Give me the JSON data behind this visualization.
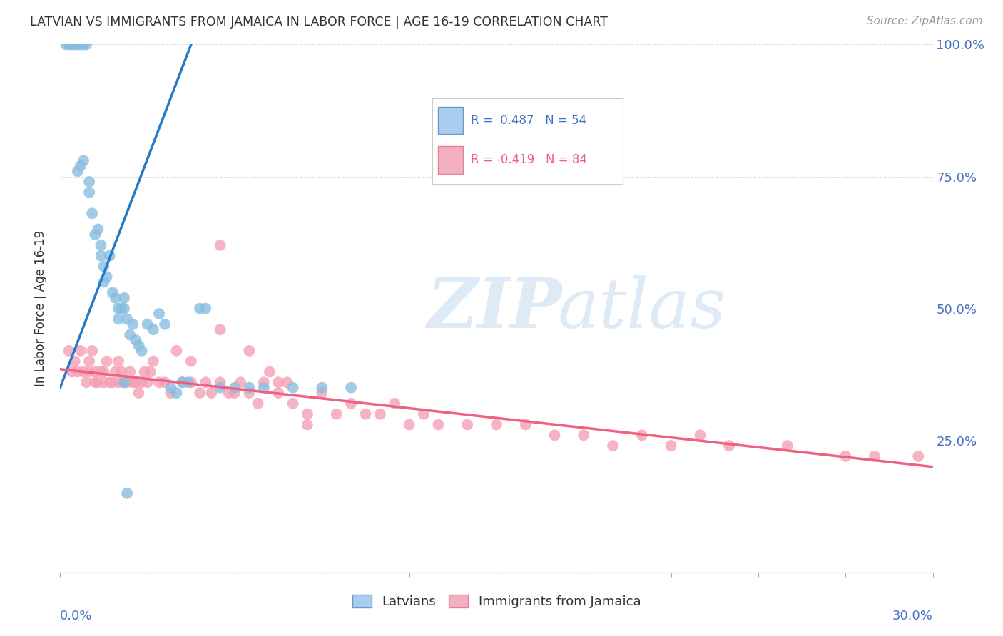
{
  "title": "LATVIAN VS IMMIGRANTS FROM JAMAICA IN LABOR FORCE | AGE 16-19 CORRELATION CHART",
  "source": "Source: ZipAtlas.com",
  "ylabel": "In Labor Force | Age 16-19",
  "xlim": [
    0.0,
    30.0
  ],
  "ylim": [
    0.0,
    100.0
  ],
  "ytick_labels_right": [
    "25.0%",
    "50.0%",
    "75.0%",
    "100.0%"
  ],
  "ytick_values_right": [
    25.0,
    50.0,
    75.0,
    100.0
  ],
  "background_color": "#ffffff",
  "grid_color": "#e0e0e0",
  "latvian_color": "#89bde0",
  "jamaica_color": "#f4a0b5",
  "latvian_line_color": "#2878c8",
  "jamaica_line_color": "#f06080",
  "R_latvian": 0.487,
  "N_latvian": 54,
  "R_jamaica": -0.419,
  "N_jamaica": 84,
  "lat_line_x0": 0.0,
  "lat_line_y0": 35.0,
  "lat_line_x1": 4.5,
  "lat_line_y1": 100.0,
  "jam_line_x0": 0.0,
  "jam_line_y0": 38.5,
  "jam_line_x1": 30.0,
  "jam_line_y1": 20.0,
  "latvian_pts_x": [
    0.2,
    0.3,
    0.4,
    0.5,
    0.6,
    0.7,
    0.8,
    0.9,
    1.0,
    1.0,
    1.1,
    1.2,
    1.3,
    1.4,
    1.4,
    1.5,
    1.5,
    1.6,
    1.7,
    1.8,
    1.9,
    2.0,
    2.0,
    2.1,
    2.2,
    2.2,
    2.3,
    2.4,
    2.5,
    2.6,
    2.7,
    2.8,
    3.0,
    3.2,
    3.4,
    3.6,
    3.8,
    4.0,
    4.2,
    4.4,
    4.8,
    5.0,
    5.5,
    6.0,
    6.5,
    7.0,
    8.0,
    9.0,
    10.0,
    0.6,
    0.7,
    0.8,
    2.2,
    2.3
  ],
  "latvian_pts_y": [
    100.0,
    100.0,
    100.0,
    100.0,
    100.0,
    100.0,
    100.0,
    100.0,
    74.0,
    72.0,
    68.0,
    64.0,
    65.0,
    60.0,
    62.0,
    58.0,
    55.0,
    56.0,
    60.0,
    53.0,
    52.0,
    50.0,
    48.0,
    50.0,
    52.0,
    50.0,
    48.0,
    45.0,
    47.0,
    44.0,
    43.0,
    42.0,
    47.0,
    46.0,
    49.0,
    47.0,
    35.0,
    34.0,
    36.0,
    36.0,
    50.0,
    50.0,
    35.0,
    35.0,
    35.0,
    35.0,
    35.0,
    35.0,
    35.0,
    76.0,
    77.0,
    78.0,
    36.0,
    15.0
  ],
  "jamaica_pts_x": [
    0.3,
    0.4,
    0.5,
    0.6,
    0.7,
    0.8,
    0.9,
    1.0,
    1.0,
    1.1,
    1.2,
    1.2,
    1.3,
    1.4,
    1.5,
    1.5,
    1.6,
    1.7,
    1.8,
    1.9,
    2.0,
    2.0,
    2.1,
    2.2,
    2.3,
    2.4,
    2.5,
    2.6,
    2.7,
    2.8,
    2.9,
    3.0,
    3.1,
    3.2,
    3.4,
    3.6,
    3.8,
    4.0,
    4.2,
    4.5,
    4.8,
    5.0,
    5.2,
    5.5,
    5.5,
    5.8,
    6.0,
    6.2,
    6.5,
    6.8,
    7.0,
    7.2,
    7.5,
    7.8,
    8.0,
    8.5,
    9.0,
    9.5,
    10.0,
    10.5,
    11.0,
    11.5,
    12.0,
    12.5,
    13.0,
    14.0,
    15.0,
    16.0,
    17.0,
    18.0,
    19.0,
    20.0,
    21.0,
    22.0,
    23.0,
    25.0,
    27.0,
    28.0,
    29.5,
    5.5,
    4.5,
    6.5,
    7.5,
    8.5
  ],
  "jamaica_pts_y": [
    42.0,
    38.0,
    40.0,
    38.0,
    42.0,
    38.0,
    36.0,
    40.0,
    38.0,
    42.0,
    36.0,
    38.0,
    36.0,
    38.0,
    38.0,
    36.0,
    40.0,
    36.0,
    36.0,
    38.0,
    36.0,
    40.0,
    38.0,
    36.0,
    36.0,
    38.0,
    36.0,
    36.0,
    34.0,
    36.0,
    38.0,
    36.0,
    38.0,
    40.0,
    36.0,
    36.0,
    34.0,
    42.0,
    36.0,
    36.0,
    34.0,
    36.0,
    34.0,
    46.0,
    36.0,
    34.0,
    34.0,
    36.0,
    34.0,
    32.0,
    36.0,
    38.0,
    34.0,
    36.0,
    32.0,
    30.0,
    34.0,
    30.0,
    32.0,
    30.0,
    30.0,
    32.0,
    28.0,
    30.0,
    28.0,
    28.0,
    28.0,
    28.0,
    26.0,
    26.0,
    24.0,
    26.0,
    24.0,
    26.0,
    24.0,
    24.0,
    22.0,
    22.0,
    22.0,
    62.0,
    40.0,
    42.0,
    36.0,
    28.0
  ]
}
